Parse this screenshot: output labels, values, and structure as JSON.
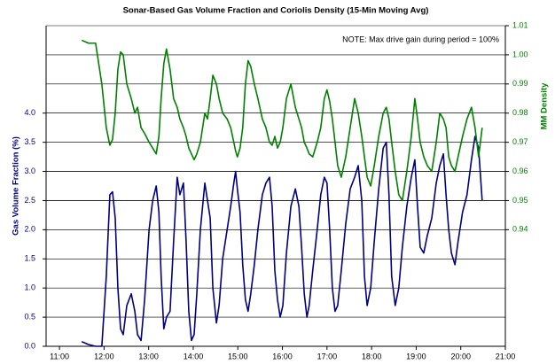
{
  "chart_data": {
    "type": "line",
    "title": "Sonar-Based Gas Volume Fraction and Coriolis Density (15-Min Moving Avg)",
    "annotation": "NOTE: Max drive gain during period = 100%",
    "ylabel": "Gas Volume Fraction (%)",
    "y2label": "MM Density",
    "xlim": [
      10.7,
      21.0
    ],
    "xticks": [
      {
        "value": 11,
        "label": "11:00"
      },
      {
        "value": 12,
        "label": "12:00"
      },
      {
        "value": 13,
        "label": "13:00"
      },
      {
        "value": 14,
        "label": "14:00"
      },
      {
        "value": 15,
        "label": "15:00"
      },
      {
        "value": 16,
        "label": "16:00"
      },
      {
        "value": 17,
        "label": "17:00"
      },
      {
        "value": 18,
        "label": "18:00"
      },
      {
        "value": 19,
        "label": "19:00"
      },
      {
        "value": 20,
        "label": "20:00"
      },
      {
        "value": 21,
        "label": "21:00"
      }
    ],
    "ylim": [
      0,
      5.5
    ],
    "yticks": [
      {
        "value": 0,
        "label": "0.0"
      },
      0.5,
      {
        "value": 1,
        "label": "1.0"
      },
      1.5,
      {
        "value": 2,
        "label": "2.0"
      },
      2.5,
      {
        "value": 3,
        "label": "3.0"
      },
      3.5,
      {
        "value": 4,
        "label": "4.0"
      }
    ],
    "y2lim": [
      0.9,
      1.01
    ],
    "y2ticks": [
      0.94,
      0.95,
      0.96,
      0.97,
      0.98,
      0.99,
      {
        "value": 1.0,
        "label": "1.00"
      },
      1.01
    ],
    "grid": true,
    "x": [
      11.5,
      11.65,
      11.81,
      11.95,
      12.05,
      12.13,
      12.19,
      12.25,
      12.31,
      12.37,
      12.43,
      12.51,
      12.61,
      12.69,
      12.75,
      12.83,
      12.91,
      13.01,
      13.09,
      13.17,
      13.23,
      13.28,
      13.34,
      13.4,
      13.48,
      13.56,
      13.64,
      13.7,
      13.78,
      13.84,
      13.9,
      13.96,
      14.02,
      14.08,
      14.16,
      14.26,
      14.32,
      14.38,
      14.44,
      14.52,
      14.58,
      14.66,
      14.76,
      14.84,
      14.91,
      14.95,
      14.99,
      15.05,
      15.11,
      15.17,
      15.23,
      15.29,
      15.37,
      15.45,
      15.55,
      15.63,
      15.71,
      15.77,
      15.83,
      15.89,
      15.95,
      16.01,
      16.09,
      16.19,
      16.29,
      16.37,
      16.43,
      16.49,
      16.55,
      16.6,
      16.68,
      16.78,
      16.86,
      16.94,
      17.0,
      17.06,
      17.12,
      17.18,
      17.24,
      17.32,
      17.42,
      17.52,
      17.62,
      17.7,
      17.78,
      17.84,
      17.9,
      17.98,
      18.06,
      18.16,
      18.26,
      18.33,
      18.39,
      18.45,
      18.53,
      18.61,
      18.69,
      18.79,
      18.89,
      18.97,
      19.03,
      19.09,
      19.17,
      19.25,
      19.35,
      19.45,
      19.53,
      19.61,
      19.67,
      19.73,
      19.79,
      19.87,
      19.94,
      20.04,
      20.14,
      20.24,
      20.32,
      20.4,
      20.48
    ],
    "series": [
      {
        "color": "#000080",
        "axis": "y",
        "values": [
          0.08,
          0.03,
          0.0,
          0.0,
          1.2,
          2.6,
          2.65,
          2.2,
          1.0,
          0.3,
          0.2,
          0.7,
          0.9,
          0.6,
          0.2,
          0.1,
          0.8,
          2.0,
          2.5,
          2.75,
          2.3,
          1.2,
          0.3,
          0.5,
          0.6,
          1.8,
          2.9,
          2.6,
          2.8,
          1.8,
          0.6,
          0.1,
          0.2,
          0.9,
          2.0,
          2.8,
          2.5,
          2.2,
          1.0,
          0.4,
          0.7,
          1.5,
          2.0,
          2.4,
          2.8,
          3.0,
          2.7,
          2.3,
          1.4,
          0.8,
          0.6,
          0.9,
          1.4,
          2.0,
          2.6,
          2.8,
          2.9,
          2.4,
          1.3,
          0.8,
          0.5,
          0.7,
          1.6,
          2.4,
          2.7,
          2.4,
          1.7,
          0.9,
          0.5,
          0.7,
          1.3,
          2.0,
          2.6,
          2.9,
          2.8,
          2.0,
          1.0,
          0.6,
          0.7,
          1.3,
          2.1,
          2.7,
          2.9,
          3.1,
          2.5,
          1.2,
          0.7,
          1.0,
          1.8,
          2.7,
          3.4,
          3.5,
          2.6,
          1.2,
          0.7,
          1.0,
          1.7,
          2.4,
          2.9,
          3.2,
          2.4,
          1.7,
          1.6,
          1.9,
          2.2,
          2.8,
          3.1,
          3.3,
          2.6,
          2.0,
          1.6,
          1.4,
          1.8,
          2.3,
          2.6,
          3.2,
          3.6,
          3.4,
          2.5
        ]
      },
      {
        "color": "#008000",
        "axis": "y2",
        "values": [
          1.005,
          1.004,
          1.004,
          0.99,
          0.975,
          0.969,
          0.971,
          0.98,
          0.995,
          1.001,
          1.0,
          0.99,
          0.985,
          0.98,
          0.982,
          0.975,
          0.973,
          0.97,
          0.968,
          0.966,
          0.972,
          0.985,
          0.997,
          1.002,
          0.995,
          0.985,
          0.982,
          0.978,
          0.975,
          0.972,
          0.968,
          0.966,
          0.964,
          0.966,
          0.97,
          0.98,
          0.978,
          0.985,
          0.993,
          0.99,
          0.985,
          0.98,
          0.978,
          0.975,
          0.97,
          0.967,
          0.965,
          0.968,
          0.975,
          0.99,
          0.998,
          0.996,
          0.99,
          0.985,
          0.978,
          0.975,
          0.97,
          0.969,
          0.972,
          0.968,
          0.97,
          0.975,
          0.985,
          0.99,
          0.982,
          0.978,
          0.975,
          0.97,
          0.968,
          0.966,
          0.965,
          0.97,
          0.975,
          0.985,
          0.988,
          0.984,
          0.978,
          0.97,
          0.962,
          0.958,
          0.965,
          0.975,
          0.985,
          0.98,
          0.972,
          0.965,
          0.958,
          0.955,
          0.962,
          0.972,
          0.98,
          0.982,
          0.978,
          0.97,
          0.96,
          0.952,
          0.95,
          0.96,
          0.972,
          0.985,
          0.978,
          0.97,
          0.965,
          0.962,
          0.96,
          0.97,
          0.98,
          0.978,
          0.975,
          0.965,
          0.962,
          0.96,
          0.965,
          0.972,
          0.978,
          0.982,
          0.975,
          0.965,
          0.975
        ]
      }
    ]
  }
}
